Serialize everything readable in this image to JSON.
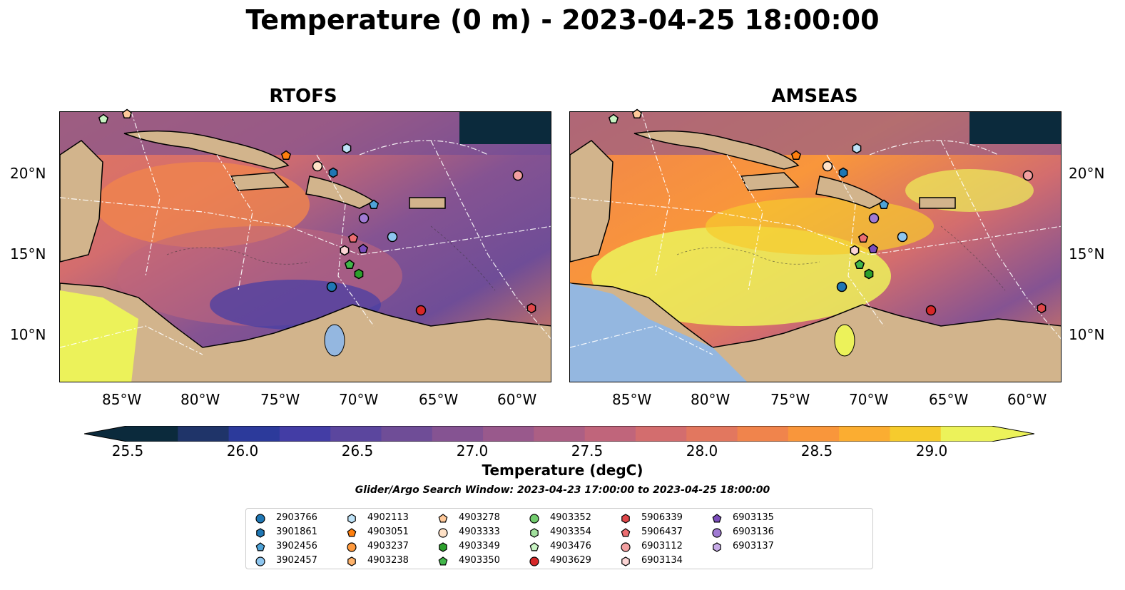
{
  "title": "Temperature (0 m) - 2023-04-25 18:00:00",
  "panels": [
    {
      "title": "RTOFS",
      "land_color": "#d2b48c",
      "warm_pool": "#ecf25a"
    },
    {
      "title": "AMSEAS",
      "land_color": "#d2b48c",
      "warm_pool": "#94b7e0"
    }
  ],
  "axes": {
    "lon_labels": [
      "85°W",
      "80°W",
      "75°W",
      "70°W",
      "65°W",
      "60°W"
    ],
    "lat_labels": [
      "20°N",
      "15°N",
      "10°N"
    ]
  },
  "colorbar": {
    "label": "Temperature (degC)",
    "ticks": [
      "25.5",
      "26.0",
      "26.5",
      "27.0",
      "27.5",
      "28.0",
      "28.5",
      "29.0"
    ],
    "colors": [
      "#0b2a3c",
      "#1f3469",
      "#2c3a9b",
      "#433da5",
      "#5b469e",
      "#6f4d97",
      "#855392",
      "#99598c",
      "#ac5f84",
      "#c0657b",
      "#d36d6e",
      "#e2775f",
      "#f0844c",
      "#f9963b",
      "#fbad31",
      "#f6cb2d",
      "#ecf25a"
    ]
  },
  "search_window": "Glider/Argo Search Window: 2023-04-23 17:00:00 to 2023-04-25 18:00:00",
  "legend": [
    {
      "id": "2903766",
      "marker": "circle",
      "color": "#1f77b4"
    },
    {
      "id": "3901861",
      "marker": "hexagon",
      "color": "#1f77b4"
    },
    {
      "id": "3902456",
      "marker": "pentagon",
      "color": "#4ea3d8"
    },
    {
      "id": "3902457",
      "marker": "circle",
      "color": "#8ec6ef"
    },
    {
      "id": "4902113",
      "marker": "hexagon",
      "color": "#bfe3f8"
    },
    {
      "id": "4903051",
      "marker": "pentagon",
      "color": "#ff7f0e"
    },
    {
      "id": "4903237",
      "marker": "circle",
      "color": "#ff9a3d"
    },
    {
      "id": "4903238",
      "marker": "hexagon",
      "color": "#ffb36b"
    },
    {
      "id": "4903278",
      "marker": "pentagon",
      "color": "#ffc99a"
    },
    {
      "id": "4903333",
      "marker": "circle",
      "color": "#ffe1c6"
    },
    {
      "id": "4903349",
      "marker": "hexagon",
      "color": "#2ca02c"
    },
    {
      "id": "4903350",
      "marker": "pentagon",
      "color": "#41b64a"
    },
    {
      "id": "4903352",
      "marker": "circle",
      "color": "#72cc6e"
    },
    {
      "id": "4903354",
      "marker": "hexagon",
      "color": "#a1e09c"
    },
    {
      "id": "4903476",
      "marker": "pentagon",
      "color": "#c8f3c3"
    },
    {
      "id": "4903629",
      "marker": "circle",
      "color": "#d62728"
    },
    {
      "id": "5906339",
      "marker": "hexagon",
      "color": "#e0474a"
    },
    {
      "id": "5906437",
      "marker": "pentagon",
      "color": "#ec6d71"
    },
    {
      "id": "6903112",
      "marker": "circle",
      "color": "#f3a0a1"
    },
    {
      "id": "6903134",
      "marker": "hexagon",
      "color": "#fbd4d4"
    },
    {
      "id": "6903135",
      "marker": "pentagon",
      "color": "#7b4dbb"
    },
    {
      "id": "6903136",
      "marker": "circle",
      "color": "#a07ad3"
    },
    {
      "id": "6903137",
      "marker": "hexagon",
      "color": "#c6aae6"
    }
  ]
}
